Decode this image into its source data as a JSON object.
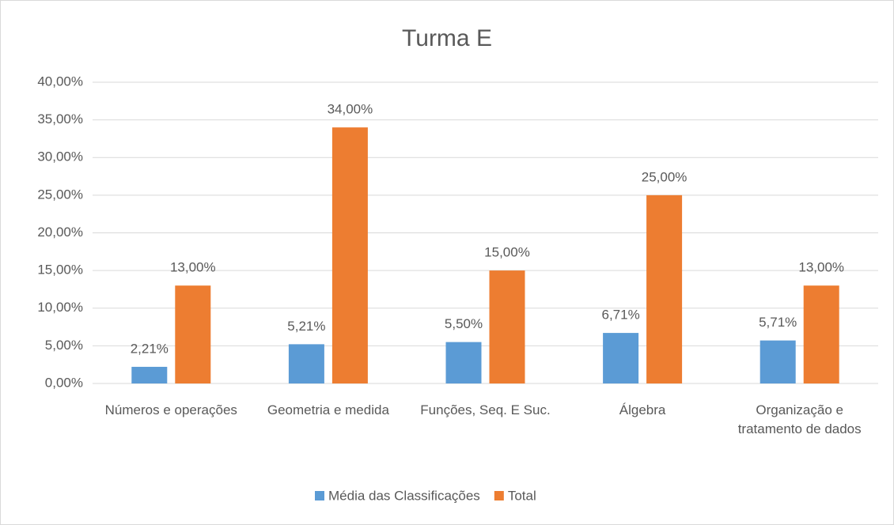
{
  "chart_data": {
    "type": "bar",
    "title": "Turma E",
    "categories": [
      "Números e operações",
      "Geometria e medida",
      "Funções, Seq. E Suc.",
      "Álgebra",
      "Organização e tratamento de dados"
    ],
    "series": [
      {
        "name": "Média das Classificações",
        "color": "#5b9bd5",
        "values": [
          2.21,
          5.21,
          5.5,
          6.71,
          5.71
        ],
        "value_labels": [
          "2,21%",
          "5,21%",
          "5,50%",
          "6,71%",
          "5,71%"
        ]
      },
      {
        "name": "Total",
        "color": "#ed7d31",
        "values": [
          13,
          34,
          15,
          25,
          13
        ],
        "value_labels": [
          "13,00%",
          "34,00%",
          "15,00%",
          "25,00%",
          "13,00%"
        ]
      }
    ],
    "ylim": [
      0,
      40
    ],
    "yticks": [
      {
        "value": 0,
        "label": "0,00%"
      },
      {
        "value": 5,
        "label": "5,00%"
      },
      {
        "value": 10,
        "label": "10,00%"
      },
      {
        "value": 15,
        "label": "15,00%"
      },
      {
        "value": 20,
        "label": "20,00%"
      },
      {
        "value": 25,
        "label": "25,00%"
      },
      {
        "value": 30,
        "label": "30,00%"
      },
      {
        "value": 35,
        "label": "35,00%"
      },
      {
        "value": 40,
        "label": "40,00%"
      }
    ],
    "grid": true,
    "legend": "bottom"
  }
}
